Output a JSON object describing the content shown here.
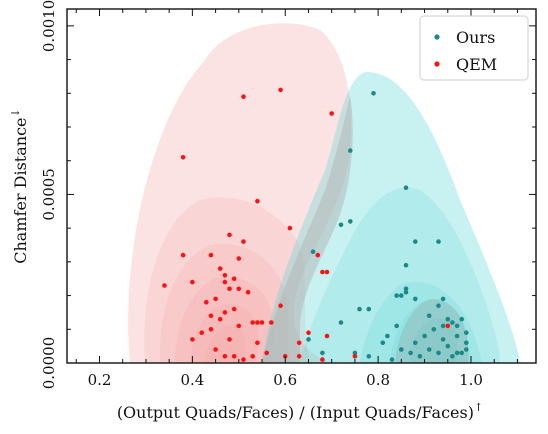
{
  "chart_data": {
    "type": "scatter",
    "xlabel": "(Output Quads/Faces) / (Input Quads/Faces)",
    "xlabel_arrow": "↑",
    "ylabel": "Chamfer Distance",
    "ylabel_arrow": "↓",
    "xlim": [
      0.13,
      1.14
    ],
    "ylim": [
      0,
      0.00105
    ],
    "xticks": [
      0.2,
      0.4,
      0.6,
      0.8,
      1.0
    ],
    "xtick_labels": [
      "0.2",
      "0.4",
      "0.6",
      "0.8",
      "1.0"
    ],
    "yticks": [
      0,
      0.0005,
      0.001
    ],
    "ytick_labels": [
      "0.0000",
      "0.0005",
      "0.0010"
    ],
    "grid": false,
    "legend_position": "top-right",
    "background": "kernel density contours",
    "series": [
      {
        "name": "Ours",
        "color": "#1a8a88",
        "density_color": "#5fd6d6",
        "points": [
          [
            0.79,
            0.0008
          ],
          [
            0.74,
            0.00063
          ],
          [
            0.86,
            0.00052
          ],
          [
            0.72,
            0.00041
          ],
          [
            0.74,
            0.00042
          ],
          [
            0.88,
            0.00036
          ],
          [
            0.93,
            0.00036
          ],
          [
            0.66,
            0.00033
          ],
          [
            0.86,
            0.00029
          ],
          [
            0.86,
            0.00022
          ],
          [
            0.76,
            0.00016
          ],
          [
            0.78,
            0.00016
          ],
          [
            0.72,
            0.00012
          ],
          [
            0.84,
            0.0002
          ],
          [
            0.85,
            0.0002
          ],
          [
            0.86,
            0.00021
          ],
          [
            0.88,
            0.00019
          ],
          [
            0.91,
            0.00014
          ],
          [
            0.93,
            0.00017
          ],
          [
            0.94,
            0.00019
          ],
          [
            0.95,
            0.00013
          ],
          [
            0.96,
            0.00012
          ],
          [
            0.97,
            0.00011
          ],
          [
            0.98,
            0.00013
          ],
          [
            0.99,
            9e-05
          ],
          [
            0.99,
            4e-05
          ],
          [
            0.97,
            3e-05
          ],
          [
            0.96,
            2e-05
          ],
          [
            0.95,
            5e-05
          ],
          [
            0.94,
            7e-05
          ],
          [
            0.92,
            0.0001
          ],
          [
            0.9,
            8e-05
          ],
          [
            0.88,
            6e-05
          ],
          [
            0.87,
            3e-05
          ],
          [
            0.85,
            4e-05
          ],
          [
            0.83,
            1e-05
          ],
          [
            0.81,
            6e-05
          ],
          [
            0.78,
            2e-05
          ],
          [
            0.75,
            3e-05
          ],
          [
            0.68,
            3e-05
          ],
          [
            0.98,
            3e-05
          ],
          [
            0.99,
            6e-05
          ],
          [
            0.97,
            8e-05
          ],
          [
            0.94,
            0.00011
          ],
          [
            0.93,
            3e-05
          ],
          [
            0.91,
            4e-05
          ],
          [
            0.89,
            2e-05
          ],
          [
            0.84,
            0.00011
          ],
          [
            0.82,
            8e-05
          ],
          [
            0.65,
            7e-05
          ]
        ]
      },
      {
        "name": "QEM",
        "color": "#ff1111",
        "density_color": "#f5a3a3",
        "points": [
          [
            0.59,
            0.00081
          ],
          [
            0.51,
            0.00079
          ],
          [
            0.7,
            0.00074
          ],
          [
            0.38,
            0.00061
          ],
          [
            0.54,
            0.00048
          ],
          [
            0.61,
            0.0004
          ],
          [
            0.48,
            0.00038
          ],
          [
            0.51,
            0.00036
          ],
          [
            0.38,
            0.00032
          ],
          [
            0.5,
            0.00031
          ],
          [
            0.44,
            0.00032
          ],
          [
            0.67,
            0.00032
          ],
          [
            0.46,
            0.00028
          ],
          [
            0.47,
            0.00026
          ],
          [
            0.49,
            0.00025
          ],
          [
            0.68,
            0.00027
          ],
          [
            0.69,
            0.00027
          ],
          [
            0.4,
            0.00024
          ],
          [
            0.34,
            0.00023
          ],
          [
            0.47,
            0.00024
          ],
          [
            0.48,
            0.00022
          ],
          [
            0.5,
            0.00022
          ],
          [
            0.52,
            0.00021
          ],
          [
            0.45,
            0.00019
          ],
          [
            0.43,
            0.00018
          ],
          [
            0.49,
            0.00016
          ],
          [
            0.47,
            0.00015
          ],
          [
            0.44,
            0.00014
          ],
          [
            0.46,
            0.00013
          ],
          [
            0.53,
            0.00012
          ],
          [
            0.54,
            0.00012
          ],
          [
            0.55,
            0.00012
          ],
          [
            0.57,
            0.00012
          ],
          [
            0.5,
            0.00011
          ],
          [
            0.44,
            0.0001
          ],
          [
            0.42,
            9e-05
          ],
          [
            0.4,
            7e-05
          ],
          [
            0.48,
            7e-05
          ],
          [
            0.54,
            6e-05
          ],
          [
            0.63,
            6e-05
          ],
          [
            0.65,
            9e-05
          ],
          [
            0.69,
            8e-05
          ],
          [
            0.45,
            4e-05
          ],
          [
            0.47,
            2e-05
          ],
          [
            0.49,
            2e-05
          ],
          [
            0.51,
            1e-05
          ],
          [
            0.53,
            2e-05
          ],
          [
            0.56,
            3e-05
          ],
          [
            0.6,
            2e-05
          ],
          [
            0.63,
            2e-05
          ],
          [
            0.68,
            1e-05
          ],
          [
            0.75,
            2e-05
          ],
          [
            0.59,
            0.00017
          ],
          [
            0.95,
            0.00011
          ]
        ]
      }
    ]
  }
}
